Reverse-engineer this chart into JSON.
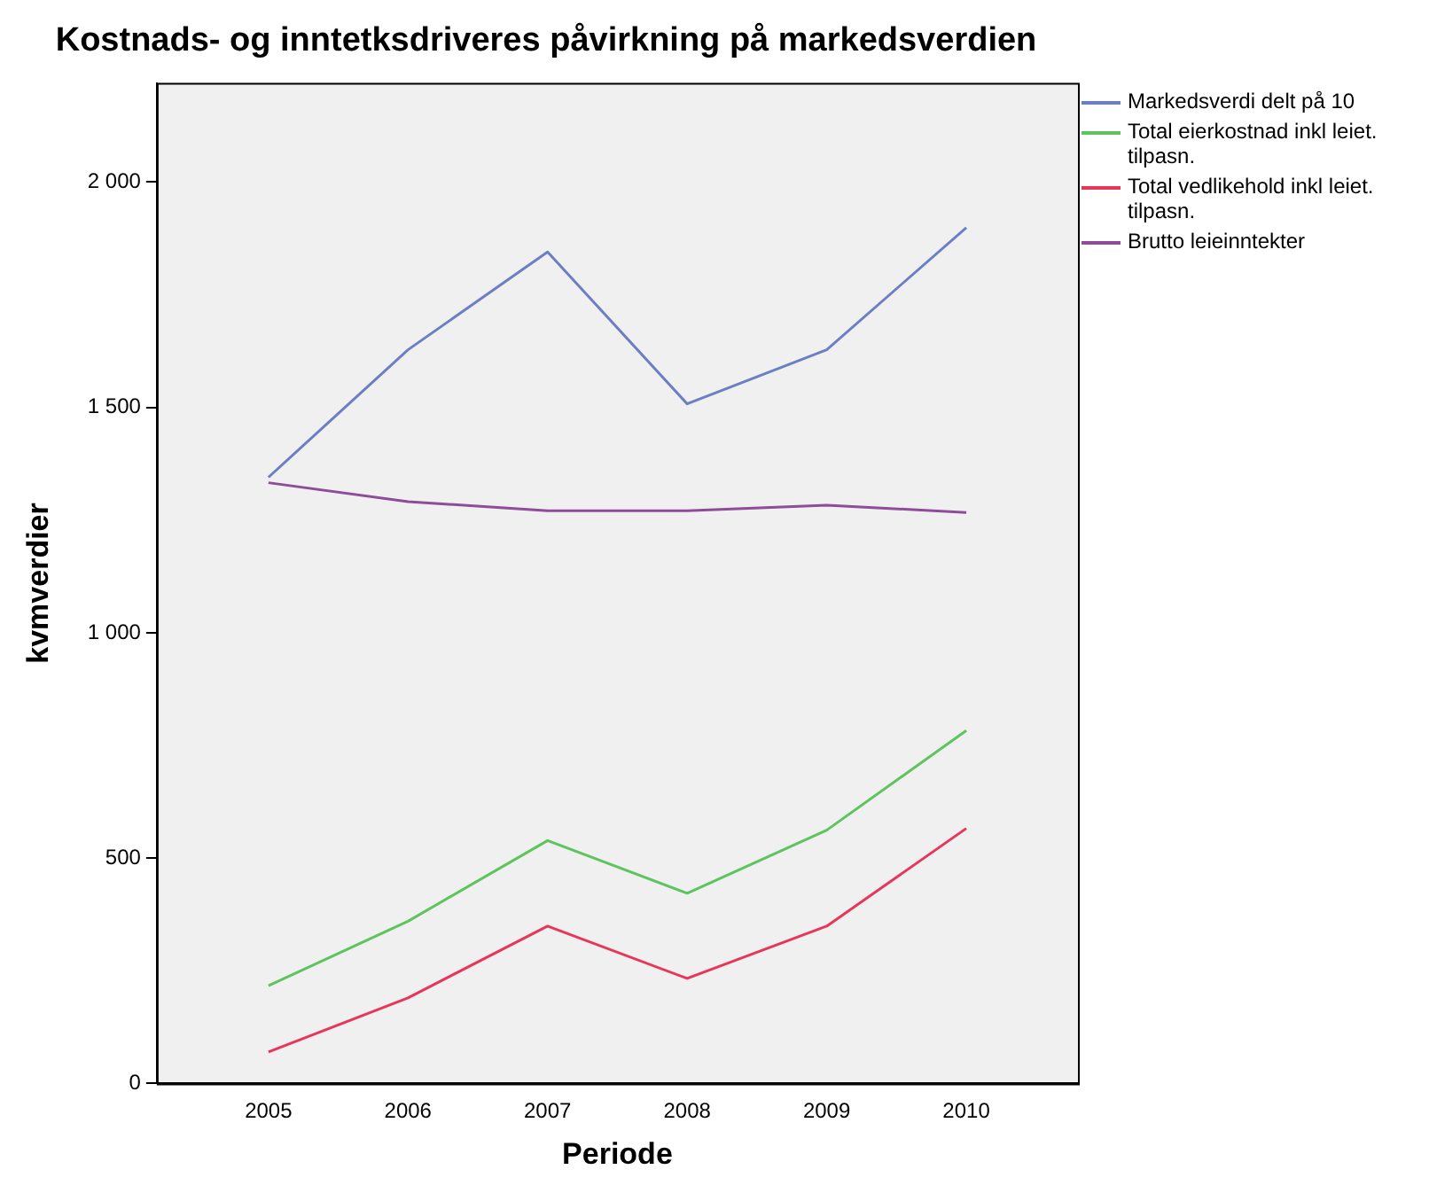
{
  "chart_data": {
    "type": "line",
    "title": "Kostnads- og inntetksdriveres påvirkning på markedsverdien",
    "xlabel": "Periode",
    "ylabel": "kvmverdier",
    "x": [
      2005,
      2006,
      2007,
      2008,
      2009,
      2010
    ],
    "xlim": [
      2004.2,
      2010.8
    ],
    "xticks": [
      2005,
      2006,
      2007,
      2008,
      2009,
      2010
    ],
    "ylim": [
      0,
      2220
    ],
    "yticks": [
      0,
      500,
      {
        "value": 1000,
        "label": "1 000"
      },
      {
        "value": 1500,
        "label": "1 500"
      },
      {
        "value": 2000,
        "label": "2 000"
      }
    ],
    "grid": false,
    "legend": "top right",
    "marker": "none",
    "line_style": "solid",
    "series": [
      {
        "name": "Markedsverdi delt på 10",
        "color": "#6b7fc4",
        "values": [
          1345,
          1628,
          1845,
          1508,
          1628,
          1899
        ]
      },
      {
        "name": "Total eierkostnad inkl leiet. tilpasn.",
        "color": "#5ec45e",
        "values": [
          217,
          360,
          539,
          422,
          562,
          783
        ]
      },
      {
        "name": "Total vedlikehold inkl leiet. tilpasn.",
        "color": "#e8365a",
        "values": [
          70,
          190,
          349,
          233,
          349,
          566
        ]
      },
      {
        "name": "Brutto leieinntekter",
        "color": "#8e4c9a",
        "values": [
          1333,
          1291,
          1271,
          1271,
          1283,
          1267
        ]
      }
    ]
  }
}
